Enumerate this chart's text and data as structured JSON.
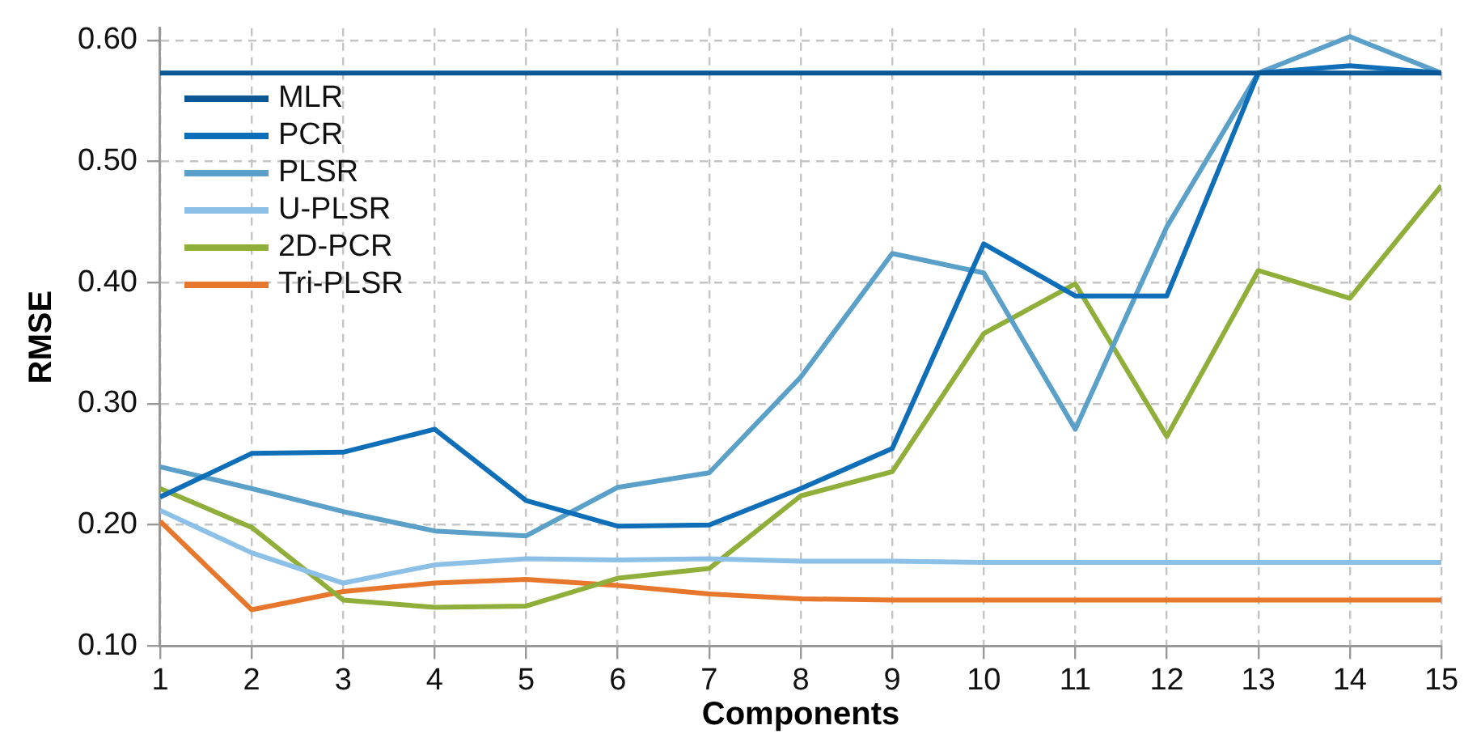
{
  "chart_data": {
    "type": "line",
    "xlabel": "Components",
    "ylabel": "RMSE",
    "x": [
      1,
      2,
      3,
      4,
      5,
      6,
      7,
      8,
      9,
      10,
      11,
      12,
      13,
      14,
      15
    ],
    "xlim": [
      1,
      15
    ],
    "xticks": [
      1,
      2,
      3,
      4,
      5,
      6,
      7,
      8,
      9,
      10,
      11,
      12,
      13,
      14,
      15
    ],
    "ylim": [
      0.1,
      0.61
    ],
    "yticks": [
      {
        "value": 0.1,
        "label": "0.10"
      },
      {
        "value": 0.2,
        "label": "0.20"
      },
      {
        "value": 0.3,
        "label": "0.30"
      },
      {
        "value": 0.4,
        "label": "0.40"
      },
      {
        "value": 0.5,
        "label": "0.50"
      },
      {
        "value": 0.6,
        "label": "0.60"
      }
    ],
    "grid": true,
    "legend": "top left",
    "marker": "none",
    "line_style": "solid",
    "series": [
      {
        "name": "MLR",
        "color": "#0a5796",
        "values": [
          0.573,
          0.573,
          0.573,
          0.573,
          0.573,
          0.573,
          0.573,
          0.573,
          0.573,
          0.573,
          0.573,
          0.573,
          0.573,
          0.573,
          0.573
        ]
      },
      {
        "name": "PCR",
        "color": "#0f6eb8",
        "values": [
          0.223,
          0.259,
          0.26,
          0.279,
          0.22,
          0.199,
          0.2,
          0.23,
          0.263,
          0.432,
          0.389,
          0.389,
          0.573,
          0.579,
          0.573
        ]
      },
      {
        "name": "PLSR",
        "color": "#5ba0c8",
        "values": [
          0.248,
          0.23,
          0.211,
          0.195,
          0.191,
          0.231,
          0.243,
          0.322,
          0.424,
          0.408,
          0.279,
          0.446,
          0.573,
          0.603,
          0.573
        ]
      },
      {
        "name": "U-PLSR",
        "color": "#8cc0e6",
        "values": [
          0.212,
          0.177,
          0.152,
          0.167,
          0.172,
          0.171,
          0.172,
          0.17,
          0.17,
          0.169,
          0.169,
          0.169,
          0.169,
          0.169,
          0.169
        ]
      },
      {
        "name": "2D-PCR",
        "color": "#8fae3a",
        "values": [
          0.23,
          0.198,
          0.138,
          0.132,
          0.133,
          0.156,
          0.164,
          0.224,
          0.244,
          0.358,
          0.399,
          0.273,
          0.41,
          0.387,
          0.48
        ]
      },
      {
        "name": "Tri-PLSR",
        "color": "#e8772e",
        "values": [
          0.203,
          0.13,
          0.145,
          0.152,
          0.155,
          0.15,
          0.143,
          0.139,
          0.138,
          0.138,
          0.138,
          0.138,
          0.138,
          0.138,
          0.138
        ]
      }
    ]
  }
}
